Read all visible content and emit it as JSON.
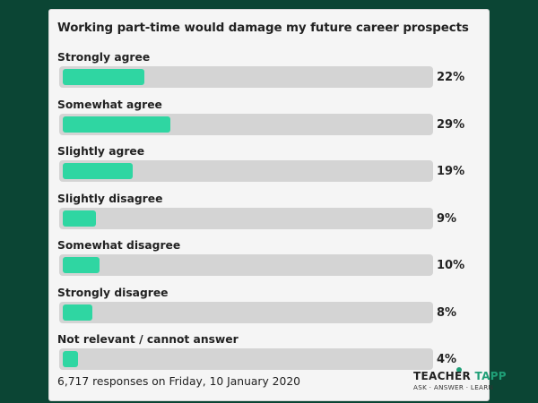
{
  "title": "Working part-time would damage my future career prospects",
  "footer": "6,717 responses on Friday, 10 January 2020",
  "logo": {
    "brand": "TEACHER",
    "brand2": "TAPP",
    "tagline": "ASK · ANSWER · LEARN"
  },
  "colors": {
    "background": "#0b4534",
    "fill": "#2fd6a2",
    "track": "#d4d4d4",
    "card": "#f5f5f5"
  },
  "chart_data": {
    "type": "bar",
    "orientation": "horizontal",
    "title": "Working part-time would damage my future career prospects",
    "categories": [
      "Strongly agree",
      "Somewhat agree",
      "Slightly agree",
      "Slightly disagree",
      "Somewhat disagree",
      "Strongly disagree",
      "Not relevant / cannot answer"
    ],
    "values": [
      22,
      29,
      19,
      9,
      10,
      8,
      4
    ],
    "value_labels": [
      "22%",
      "29%",
      "19%",
      "9%",
      "10%",
      "8%",
      "4%"
    ],
    "xlim": [
      0,
      100
    ]
  }
}
